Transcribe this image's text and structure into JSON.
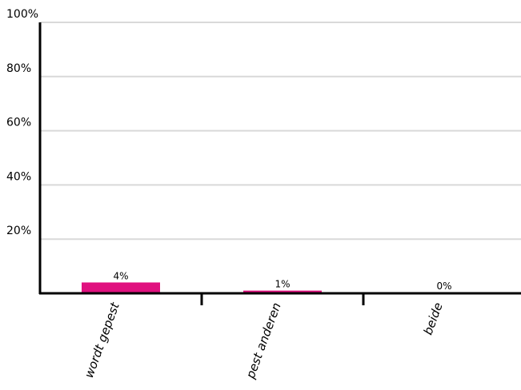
{
  "chart_data": {
    "type": "bar",
    "categories": [
      "wordt gepest",
      "pest anderen",
      "beide"
    ],
    "values": [
      4,
      1,
      0
    ],
    "data_labels": [
      "4%",
      "1%",
      "0%"
    ],
    "y_ticks": [
      {
        "value": 20,
        "label": "20%"
      },
      {
        "value": 40,
        "label": "40%"
      },
      {
        "value": 60,
        "label": "60%"
      },
      {
        "value": 80,
        "label": "80%"
      },
      {
        "value": 100,
        "label": "100%"
      }
    ],
    "ylim": [
      0,
      100
    ],
    "grid": true,
    "bar_color": "#e0117f",
    "grid_color": "#d9d9d9",
    "axis_color": "#000000"
  }
}
